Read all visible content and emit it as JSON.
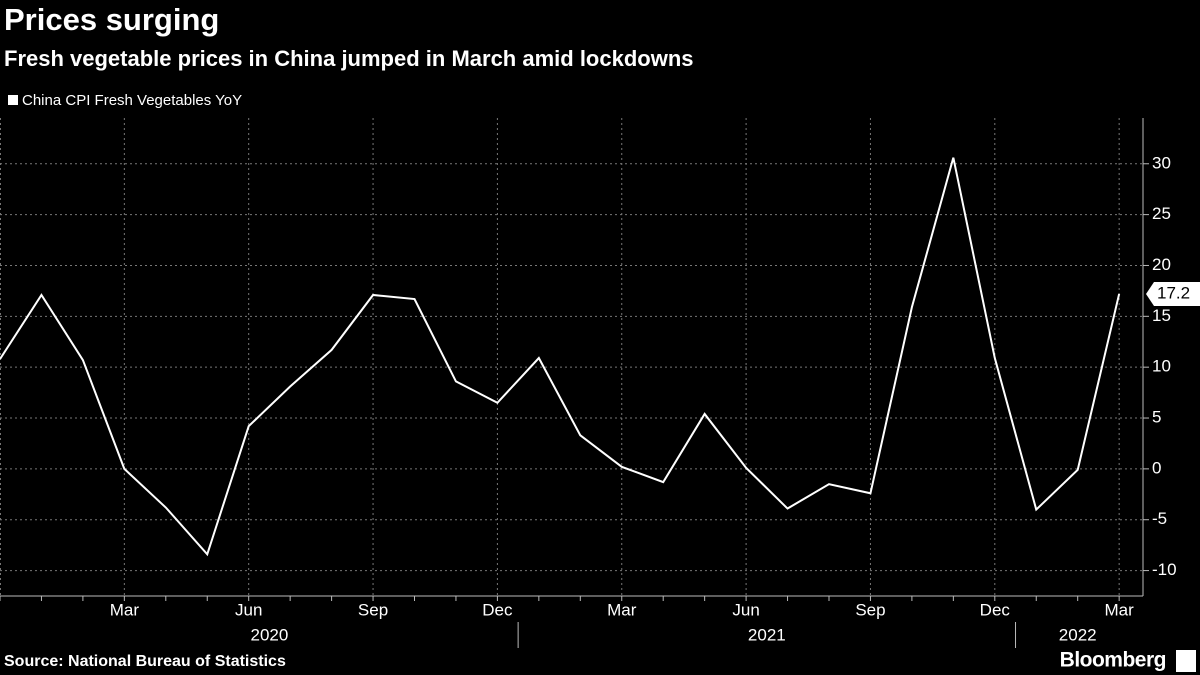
{
  "chart_data": {
    "type": "line",
    "title": "Prices surging",
    "subtitle": "Fresh vegetable prices in China jumped in March amid lockdowns",
    "source": "Source: National Bureau of Statistics",
    "brand": "Bloomberg",
    "categories": [
      null,
      null,
      null,
      "Mar",
      null,
      null,
      "Jun",
      null,
      null,
      "Sep",
      null,
      null,
      "Dec",
      null,
      null,
      "Mar",
      null,
      null,
      "Jun",
      null,
      null,
      "Sep",
      null,
      null,
      "Dec",
      null,
      null,
      "Mar"
    ],
    "year_groups": [
      {
        "label": "2020",
        "span": [
          1,
          12
        ]
      },
      {
        "label": "2021",
        "span": [
          13,
          24
        ]
      },
      {
        "label": "2022",
        "span": [
          25,
          27
        ]
      }
    ],
    "series": [
      {
        "name": "China CPI Fresh Vegetables YoY",
        "color": "#ffffff",
        "values": [
          10.8,
          17.1,
          10.7,
          0,
          -3.8,
          -8.4,
          4.2,
          8.1,
          11.7,
          17.1,
          16.7,
          8.6,
          6.5,
          10.9,
          3.3,
          0.2,
          -1.3,
          5.4,
          0.1,
          -3.9,
          -1.5,
          -2.4,
          15.9,
          30.6,
          10.9,
          -4.0,
          -0.1,
          17.2
        ]
      }
    ],
    "ylim": [
      -12.5,
      34.5
    ],
    "yticks": [
      -10,
      -5,
      0,
      5,
      10,
      15,
      20,
      25,
      30
    ],
    "grid": true,
    "y_axis_side": "right",
    "legend": "top-left"
  }
}
